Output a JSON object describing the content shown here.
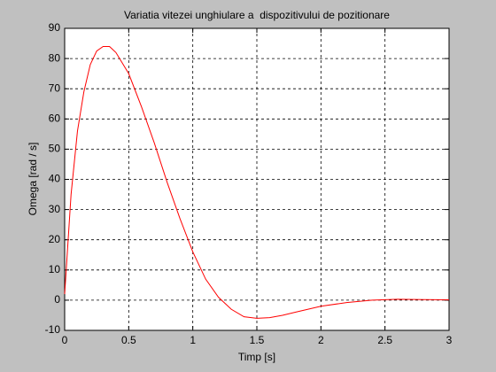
{
  "chart_data": {
    "type": "line",
    "title": "Variatia vitezei unghiulare a  dispozitivului de pozitionare",
    "x_label": "Timp [s]",
    "y_label": "Omega [rad / s]",
    "x": [
      0,
      0.05,
      0.1,
      0.15,
      0.2,
      0.25,
      0.3,
      0.35,
      0.4,
      0.5,
      0.6,
      0.7,
      0.8,
      0.9,
      1.0,
      1.1,
      1.2,
      1.3,
      1.4,
      1.5,
      1.6,
      1.7,
      1.8,
      1.9,
      2.0,
      2.2,
      2.4,
      2.6,
      2.8,
      3.0
    ],
    "series": [
      {
        "color": "#ff0000",
        "values": [
          2,
          35,
          56,
          69,
          78,
          82.5,
          84,
          84,
          82,
          75,
          64,
          52,
          39,
          27,
          16,
          7,
          1,
          -3,
          -5.5,
          -6,
          -5.8,
          -5,
          -4,
          -3,
          -2,
          -0.8,
          0,
          0.3,
          0.2,
          0.1
        ]
      }
    ],
    "xlim": [
      0,
      3
    ],
    "xticks": [
      0,
      0.5,
      1,
      1.5,
      2,
      2.5,
      3
    ],
    "ylim": [
      -10,
      90
    ],
    "yticks": [
      -10,
      0,
      10,
      20,
      30,
      40,
      50,
      60,
      70,
      80,
      90
    ],
    "grid": true
  }
}
